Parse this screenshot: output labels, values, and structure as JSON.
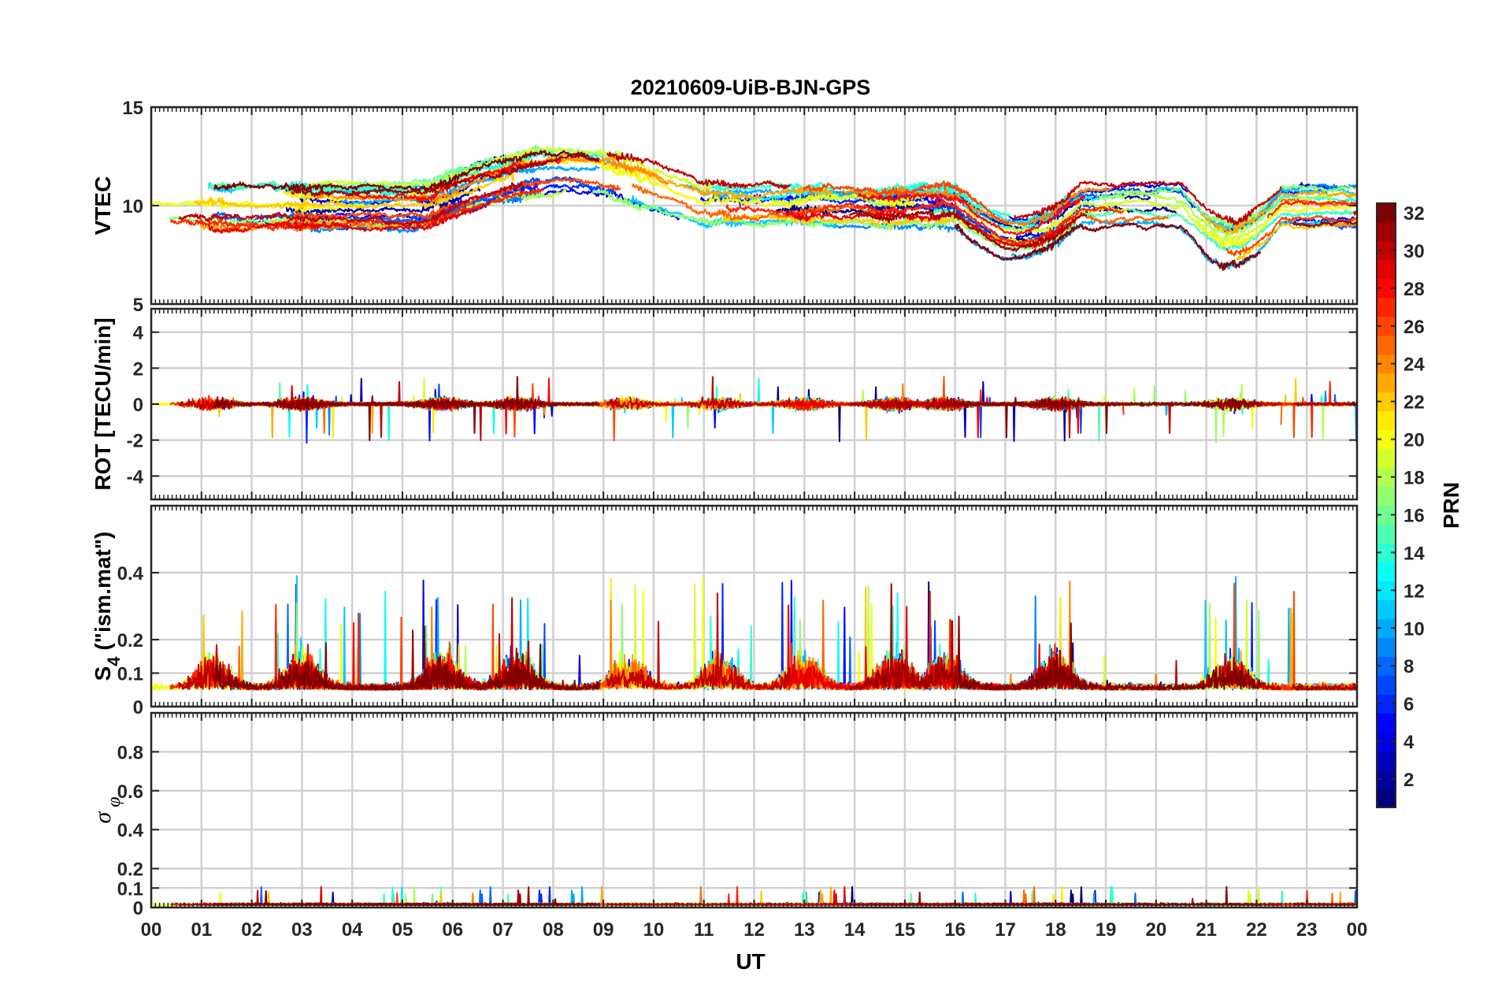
{
  "chart_data": {
    "type": "line",
    "title": "20210609-UiB-BJN-GPS",
    "xlabel": "UT",
    "x_range_hours": [
      0,
      24
    ],
    "x_tick_labels": [
      "00",
      "01",
      "02",
      "03",
      "04",
      "05",
      "06",
      "07",
      "08",
      "09",
      "10",
      "11",
      "12",
      "13",
      "14",
      "15",
      "16",
      "17",
      "18",
      "19",
      "20",
      "21",
      "22",
      "23",
      "00"
    ],
    "series_description": "32 GPS PRN satellite tracks, colored by PRN (1-32)",
    "panels": [
      {
        "id": "vtec",
        "ylabel": "VTEC",
        "ylim": [
          5,
          15
        ],
        "y_ticks": [
          5,
          10,
          15
        ],
        "y_tick_labels": [
          "5",
          "10",
          "15"
        ],
        "typical_range": [
          6,
          13
        ]
      },
      {
        "id": "rot",
        "ylabel": "ROT [TECU/min]",
        "ylim": [
          -5.3,
          5.3
        ],
        "y_ticks": [
          -4,
          -2,
          0,
          2,
          4
        ],
        "y_tick_labels": [
          "-4",
          "-2",
          "0",
          "2",
          "4"
        ],
        "typical_range": [
          -3.2,
          1.8
        ]
      },
      {
        "id": "s4",
        "ylabel_main": "S",
        "ylabel_sub": "4",
        "ylabel_rest": " (\"ism.mat\")",
        "ylim": [
          0,
          0.6
        ],
        "y_ticks": [
          0,
          0.1,
          0.2,
          0.4
        ],
        "y_tick_labels": [
          "0",
          "0.1",
          "0.2",
          "0.4"
        ],
        "typical_range": [
          0.04,
          0.55
        ]
      },
      {
        "id": "sigma_phi",
        "ylabel_symbol": "σ",
        "ylabel_sub": "φ",
        "ylim": [
          0,
          1
        ],
        "y_ticks": [
          0,
          0.1,
          0.2,
          0.4,
          0.6,
          0.8
        ],
        "y_tick_labels": [
          "0",
          "0.1",
          "0.2",
          "0.4",
          "0.6",
          "0.8"
        ],
        "typical_range": [
          0,
          0.13
        ]
      }
    ],
    "colorbar": {
      "label": "PRN",
      "range": [
        1,
        32
      ],
      "colormap": "jet",
      "tick_labels": [
        "2",
        "4",
        "6",
        "8",
        "10",
        "12",
        "14",
        "16",
        "18",
        "20",
        "22",
        "24",
        "26",
        "28",
        "30",
        "32"
      ]
    }
  }
}
